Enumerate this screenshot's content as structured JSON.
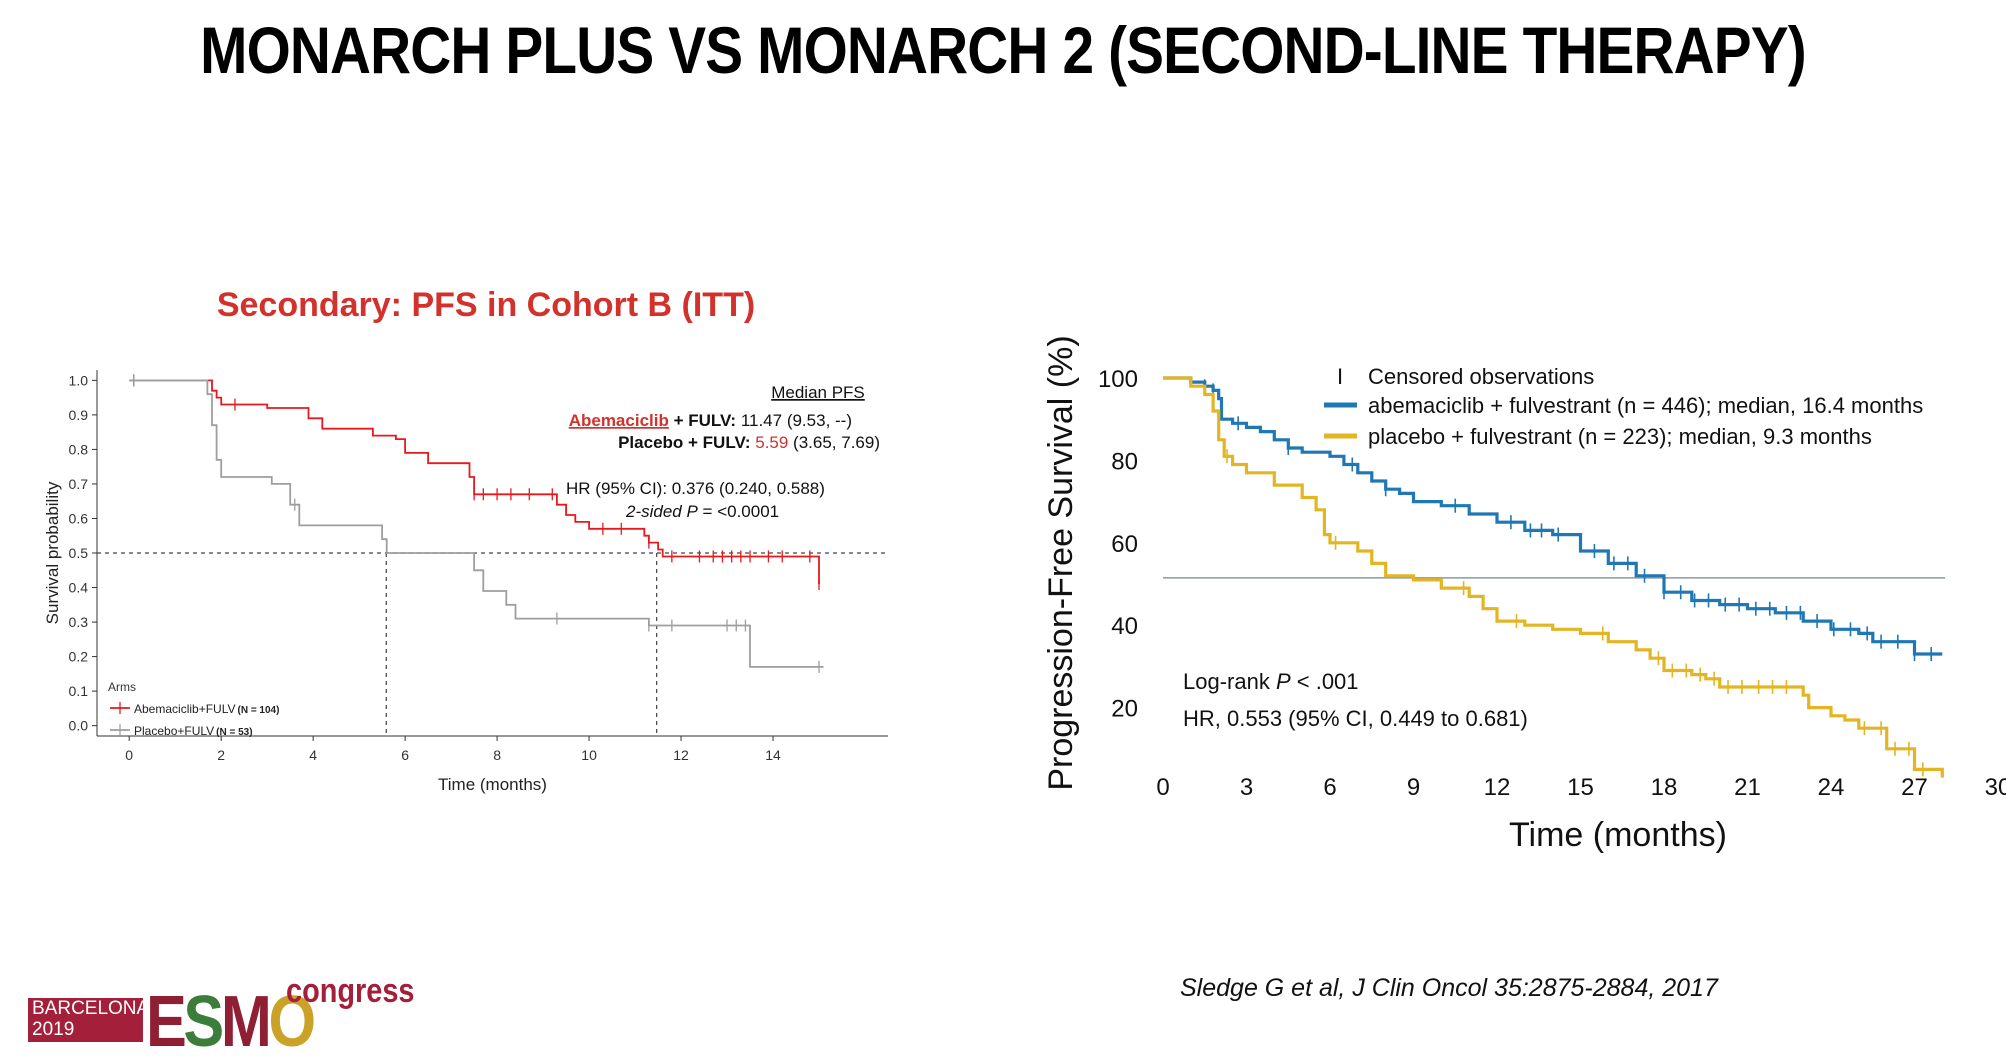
{
  "slide": {
    "title": "MONARCH PLUS VS MONARCH 2 (SECOND-LINE THERAPY)",
    "citation": "Sledge G et al, J Clin Oncol 35:2875-2884, 2017"
  },
  "logo": {
    "city": "BARCELONA",
    "year": "2019",
    "letters": [
      "E",
      "S",
      "M",
      "O"
    ],
    "congress": "congress",
    "colors": {
      "burgundy": "#8f1f33",
      "green": "#3d7d3a",
      "gold": "#c9a227",
      "red": "#a31f3a"
    }
  },
  "chart_data": [
    {
      "type": "line",
      "title": "Secondary: PFS in Cohort B (ITT)",
      "xlabel": "Time (months)",
      "ylabel": "Survival probability",
      "xlim": [
        -0.7,
        16.5
      ],
      "ylim": [
        -0.03,
        1.03
      ],
      "xticks": [
        0,
        2,
        4,
        6,
        8,
        10,
        12,
        14
      ],
      "yticks": [
        0.0,
        0.1,
        0.2,
        0.3,
        0.4,
        0.5,
        0.6,
        0.7,
        0.8,
        0.9,
        1.0
      ],
      "ytick_labels": [
        "0.0",
        "0.1",
        "0.2",
        "0.3",
        "0.4",
        "0.5",
        "0.6",
        "0.7",
        "0.8",
        "0.9",
        "1.0"
      ],
      "grid": false,
      "reference_line": {
        "y": 0.5,
        "style": "dashed"
      },
      "median_drops": [
        5.59,
        11.47
      ],
      "legend": {
        "title": "Arms",
        "placement": "bottom-left",
        "entries": [
          {
            "label": "Abemaciclib+FULV",
            "n_label": "(N = 104)",
            "color": "#e8191c"
          },
          {
            "label": "Placebo+FULV",
            "n_label": "(N = 53)",
            "color": "#9e9e9e"
          }
        ]
      },
      "annotations": {
        "header": "Median PFS",
        "line1_drug": "Abemaciclib",
        "line1_arm": " + FULV: ",
        "line1_value": "11.47 (9.53, --)",
        "line2_arm": "Placebo + FULV: ",
        "line2_median": "5.59",
        "line2_ci": " (3.65, 7.69)",
        "hr": "HR (95% CI): 0.376 (0.240, 0.588)",
        "p_italic": "2-sided P",
        "p_value": " = <0.0001"
      },
      "series": [
        {
          "name": "Abemaciclib+FULV",
          "color": "#e8191c",
          "x": [
            0,
            1.7,
            1.8,
            1.9,
            2.0,
            2.2,
            3.0,
            3.9,
            4.2,
            5.3,
            5.8,
            6.0,
            6.5,
            7.3,
            7.4,
            7.5,
            8.8,
            9.3,
            9.5,
            9.7,
            10.0,
            11.2,
            11.3,
            11.5,
            11.6,
            14.7,
            15.0
          ],
          "y": [
            1.0,
            1.0,
            0.97,
            0.95,
            0.93,
            0.93,
            0.92,
            0.89,
            0.86,
            0.84,
            0.83,
            0.79,
            0.76,
            0.76,
            0.72,
            0.67,
            0.67,
            0.64,
            0.61,
            0.59,
            0.57,
            0.55,
            0.53,
            0.51,
            0.49,
            0.49,
            0.41
          ],
          "censor_x": [
            0.1,
            2.3,
            7.5,
            7.7,
            8.0,
            8.3,
            8.7,
            9.2,
            10.3,
            10.7,
            11.3,
            11.8,
            12.4,
            12.7,
            12.9,
            13.1,
            13.3,
            13.5,
            13.9,
            14.2,
            14.8,
            15.0
          ]
        },
        {
          "name": "Placebo+FULV",
          "color": "#9e9e9e",
          "x": [
            0,
            1.5,
            1.7,
            1.8,
            1.9,
            2.0,
            2.2,
            3.1,
            3.5,
            3.7,
            4.0,
            5.5,
            5.6,
            7.3,
            7.5,
            7.7,
            8.2,
            8.4,
            11.2,
            11.3,
            13.5,
            15.1
          ],
          "y": [
            1.0,
            1.0,
            0.96,
            0.87,
            0.77,
            0.72,
            0.72,
            0.7,
            0.64,
            0.58,
            0.58,
            0.54,
            0.5,
            0.5,
            0.45,
            0.39,
            0.35,
            0.31,
            0.31,
            0.29,
            0.17,
            0.17
          ],
          "censor_x": [
            0.1,
            3.6,
            9.3,
            11.3,
            11.8,
            13.0,
            13.2,
            13.4,
            15.0
          ]
        }
      ]
    },
    {
      "type": "line",
      "xlabel": "Time (months)",
      "ylabel": "Progression-Free Survival (%)",
      "xlim": [
        0,
        30
      ],
      "ylim": [
        0,
        100
      ],
      "xticks": [
        0,
        3,
        6,
        9,
        12,
        15,
        18,
        21,
        24,
        27,
        30
      ],
      "yticks": [
        20,
        40,
        60,
        80,
        100
      ],
      "grid": false,
      "reference_line": {
        "y": 51.5,
        "style": "solid"
      },
      "legend": {
        "placement": "top-right",
        "censor_symbol": "I",
        "censor_label": "Censored observations",
        "entries": [
          {
            "label": "abemaciclib + fulvestrant (n = 446); median, 16.4 months",
            "color": "#1f77b4"
          },
          {
            "label": "placebo + fulvestrant (n = 223); median, 9.3 months",
            "color": "#e3b523"
          }
        ]
      },
      "annotations": {
        "logrank_prefix": "Log-rank ",
        "logrank_p": "P",
        "logrank_value": " < .001",
        "hr": "HR, 0.553 (95% CI, 0.449 to 0.681)"
      },
      "series": [
        {
          "name": "abemaciclib + fulvestrant (n = 446); median, 16.4 months",
          "color": "#1f77b4",
          "x": [
            0,
            1.0,
            1.5,
            1.8,
            2.0,
            2.1,
            2.5,
            3.0,
            3.5,
            4.0,
            4.5,
            5.0,
            6.0,
            6.5,
            7.0,
            7.5,
            8.0,
            8.5,
            9.0,
            10.0,
            11.0,
            12.0,
            13.0,
            14.0,
            15.0,
            16.0,
            17.0,
            18.0,
            19.0,
            20.0,
            21.0,
            22.0,
            23.0,
            24.0,
            25.0,
            25.5,
            26.0,
            26.5,
            27.0,
            28.0
          ],
          "y": [
            100,
            99,
            98,
            97,
            95,
            90,
            89,
            88,
            87,
            85,
            83,
            82,
            81,
            79,
            77,
            75,
            73,
            72,
            70,
            69,
            67,
            65,
            63,
            62,
            58,
            55,
            52,
            48,
            46,
            45,
            44,
            43,
            41,
            39,
            38,
            36,
            36,
            36,
            33,
            33
          ],
          "censor_x": [
            1.5,
            1.8,
            2.7,
            4.5,
            6.8,
            8.0,
            10.5,
            12.5,
            13.2,
            13.6,
            14.2,
            15.5,
            16.2,
            16.7,
            17.3,
            18.0,
            18.6,
            19.1,
            19.6,
            20.2,
            20.7,
            21.3,
            21.8,
            22.4,
            22.9,
            23.5,
            24.1,
            24.7,
            25.3,
            25.8,
            26.4,
            27.0,
            27.6
          ]
        },
        {
          "name": "placebo + fulvestrant (n = 223); median, 9.3 months",
          "color": "#e3b523",
          "x": [
            0,
            1.0,
            1.5,
            1.8,
            2.0,
            2.2,
            2.5,
            3.0,
            4.0,
            5.0,
            5.5,
            5.8,
            6.0,
            7.0,
            7.5,
            8.0,
            9.0,
            10.0,
            11.0,
            11.5,
            12.0,
            13.0,
            14.0,
            15.0,
            16.0,
            17.0,
            17.5,
            18.0,
            19.0,
            19.5,
            20.0,
            21.0,
            22.0,
            22.5,
            23.0,
            23.2,
            24.0,
            24.5,
            25.0,
            26.0,
            27.0,
            28.0
          ],
          "y": [
            100,
            98,
            96,
            92,
            85,
            81,
            79,
            77,
            74,
            71,
            68,
            62,
            60,
            58,
            55,
            52,
            51,
            49,
            47,
            44,
            41,
            40,
            39,
            38,
            36,
            34,
            32,
            29,
            28,
            27,
            25,
            25,
            25,
            25,
            23,
            20,
            18,
            17,
            15,
            10,
            5,
            3
          ],
          "censor_x": [
            2.3,
            6.2,
            10.8,
            12.7,
            15.8,
            17.8,
            18.3,
            18.8,
            19.3,
            19.8,
            20.3,
            20.8,
            21.4,
            21.9,
            22.4,
            25.2,
            25.8,
            26.3,
            26.8,
            27.3
          ]
        }
      ]
    }
  ]
}
